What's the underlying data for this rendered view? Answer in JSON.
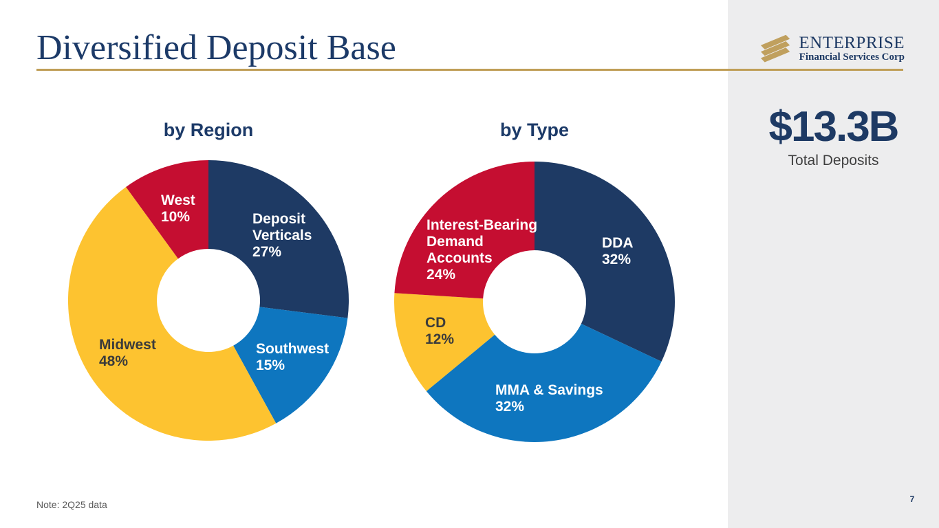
{
  "slide": {
    "title": "Diversified Deposit Base",
    "note": "Note: 2Q25 data",
    "page_number": "7"
  },
  "logo": {
    "company": "ENTERPRISE",
    "subtitle": "Financial Services Corp",
    "mark_icon": "gold-diagonal-stripes",
    "mark_color": "#c0a05e"
  },
  "stat": {
    "value": "$13.3B",
    "label": "Total Deposits"
  },
  "colors": {
    "navy": "#1e3a64",
    "blue": "#0e76bf",
    "gold": "#fdc330",
    "red": "#c50e31",
    "accent_line": "#bf9e56",
    "panel_bg": "#ededee"
  },
  "chart_data": [
    {
      "type": "pie",
      "subtype": "donut",
      "title": "by Region",
      "categories": [
        "Deposit Verticals",
        "Southwest",
        "Midwest",
        "West"
      ],
      "values": [
        27,
        15,
        48,
        10
      ],
      "unit": "%",
      "colors": [
        "#1e3a64",
        "#0e76bf",
        "#fdc330",
        "#c50e31"
      ],
      "labels": [
        "Deposit\nVerticals\n27%",
        "Southwest\n15%",
        "Midwest\n48%",
        "West\n10%"
      ],
      "start_angle_deg": 0,
      "direction": "clockwise",
      "legend": "none"
    },
    {
      "type": "pie",
      "subtype": "donut",
      "title": "by Type",
      "categories": [
        "DDA",
        "MMA & Savings",
        "CD",
        "Interest-Bearing Demand Accounts"
      ],
      "values": [
        32,
        32,
        12,
        24
      ],
      "unit": "%",
      "colors": [
        "#1e3a64",
        "#0e76bf",
        "#fdc330",
        "#c50e31"
      ],
      "labels": [
        "DDA\n32%",
        "MMA & Savings\n32%",
        "CD\n12%",
        "Interest-Bearing\nDemand\nAccounts\n24%"
      ],
      "start_angle_deg": 0,
      "direction": "clockwise",
      "legend": "none"
    }
  ]
}
